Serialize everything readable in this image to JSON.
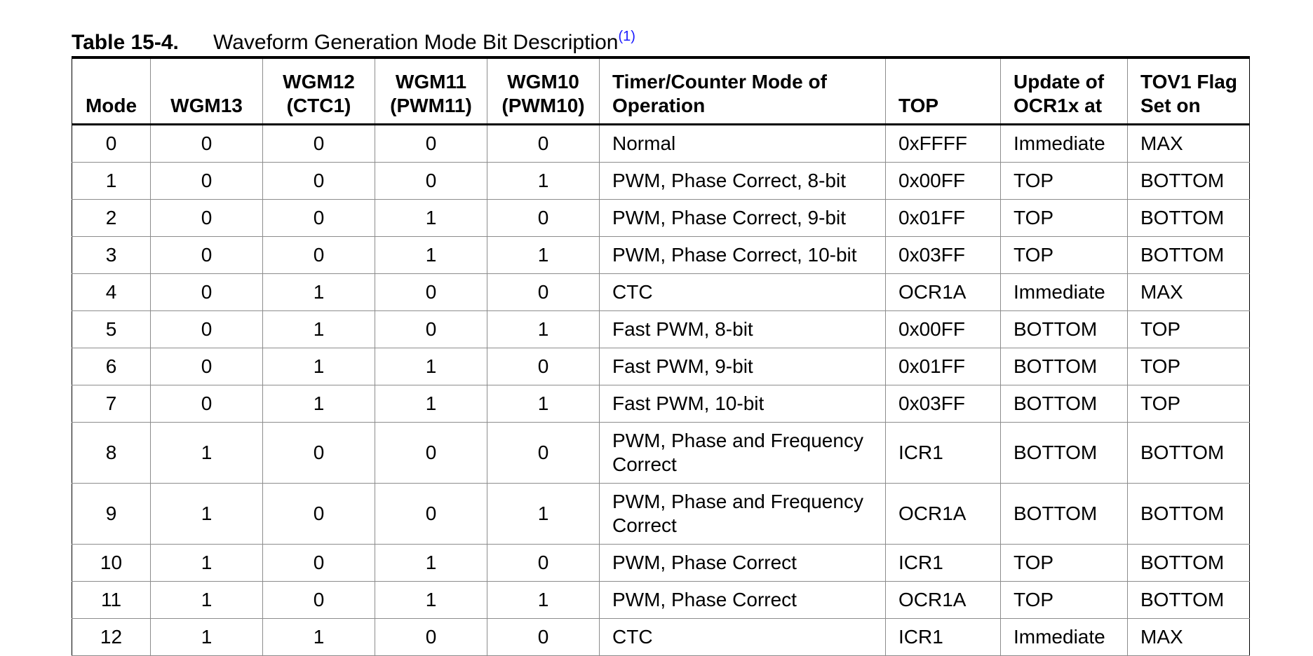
{
  "caption": {
    "label": "Table 15-4.",
    "title": "Waveform Generation Mode Bit Description",
    "footnote_ref": "(1)"
  },
  "table": {
    "headers": {
      "mode": "Mode",
      "wgm13": "WGM13",
      "wgm12": [
        "WGM12",
        "(CTC1)"
      ],
      "wgm11": [
        "WGM11",
        "(PWM11)"
      ],
      "wgm10": [
        "WGM10",
        "(PWM10)"
      ],
      "operation": [
        "Timer/Counter Mode of",
        "Operation"
      ],
      "top": "TOP",
      "update": [
        "Update of",
        "OCR1x at"
      ],
      "tov1": [
        "TOV1 Flag",
        "Set on"
      ]
    },
    "rows": [
      {
        "mode": "0",
        "wgm13": "0",
        "wgm12": "0",
        "wgm11": "0",
        "wgm10": "0",
        "operation": [
          "Normal"
        ],
        "top": "0xFFFF",
        "update": "Immediate",
        "tov1": "MAX"
      },
      {
        "mode": "1",
        "wgm13": "0",
        "wgm12": "0",
        "wgm11": "0",
        "wgm10": "1",
        "operation": [
          "PWM, Phase Correct, 8-bit"
        ],
        "top": "0x00FF",
        "update": "TOP",
        "tov1": "BOTTOM"
      },
      {
        "mode": "2",
        "wgm13": "0",
        "wgm12": "0",
        "wgm11": "1",
        "wgm10": "0",
        "operation": [
          "PWM, Phase Correct, 9-bit"
        ],
        "top": "0x01FF",
        "update": "TOP",
        "tov1": "BOTTOM"
      },
      {
        "mode": "3",
        "wgm13": "0",
        "wgm12": "0",
        "wgm11": "1",
        "wgm10": "1",
        "operation": [
          "PWM, Phase Correct, 10-bit"
        ],
        "top": "0x03FF",
        "update": "TOP",
        "tov1": "BOTTOM"
      },
      {
        "mode": "4",
        "wgm13": "0",
        "wgm12": "1",
        "wgm11": "0",
        "wgm10": "0",
        "operation": [
          "CTC"
        ],
        "top": "OCR1A",
        "update": "Immediate",
        "tov1": "MAX"
      },
      {
        "mode": "5",
        "wgm13": "0",
        "wgm12": "1",
        "wgm11": "0",
        "wgm10": "1",
        "operation": [
          "Fast PWM, 8-bit"
        ],
        "top": "0x00FF",
        "update": "BOTTOM",
        "tov1": "TOP"
      },
      {
        "mode": "6",
        "wgm13": "0",
        "wgm12": "1",
        "wgm11": "1",
        "wgm10": "0",
        "operation": [
          "Fast PWM, 9-bit"
        ],
        "top": "0x01FF",
        "update": "BOTTOM",
        "tov1": "TOP"
      },
      {
        "mode": "7",
        "wgm13": "0",
        "wgm12": "1",
        "wgm11": "1",
        "wgm10": "1",
        "operation": [
          "Fast PWM, 10-bit"
        ],
        "top": "0x03FF",
        "update": "BOTTOM",
        "tov1": "TOP"
      },
      {
        "mode": "8",
        "wgm13": "1",
        "wgm12": "0",
        "wgm11": "0",
        "wgm10": "0",
        "operation": [
          "PWM, Phase and Frequency",
          "Correct"
        ],
        "top": "ICR1",
        "update": "BOTTOM",
        "tov1": "BOTTOM"
      },
      {
        "mode": "9",
        "wgm13": "1",
        "wgm12": "0",
        "wgm11": "0",
        "wgm10": "1",
        "operation": [
          "PWM, Phase and Frequency",
          "Correct"
        ],
        "top": "OCR1A",
        "update": "BOTTOM",
        "tov1": "BOTTOM"
      },
      {
        "mode": "10",
        "wgm13": "1",
        "wgm12": "0",
        "wgm11": "1",
        "wgm10": "0",
        "operation": [
          "PWM, Phase Correct"
        ],
        "top": "ICR1",
        "update": "TOP",
        "tov1": "BOTTOM"
      },
      {
        "mode": "11",
        "wgm13": "1",
        "wgm12": "0",
        "wgm11": "1",
        "wgm10": "1",
        "operation": [
          "PWM, Phase Correct"
        ],
        "top": "OCR1A",
        "update": "TOP",
        "tov1": "BOTTOM"
      },
      {
        "mode": "12",
        "wgm13": "1",
        "wgm12": "1",
        "wgm11": "0",
        "wgm10": "0",
        "operation": [
          "CTC"
        ],
        "top": "ICR1",
        "update": "Immediate",
        "tov1": "MAX"
      }
    ]
  },
  "colors": {
    "footnote_link": "#1a1aff",
    "rule": "#000000",
    "grid": "#8c8c8c"
  }
}
